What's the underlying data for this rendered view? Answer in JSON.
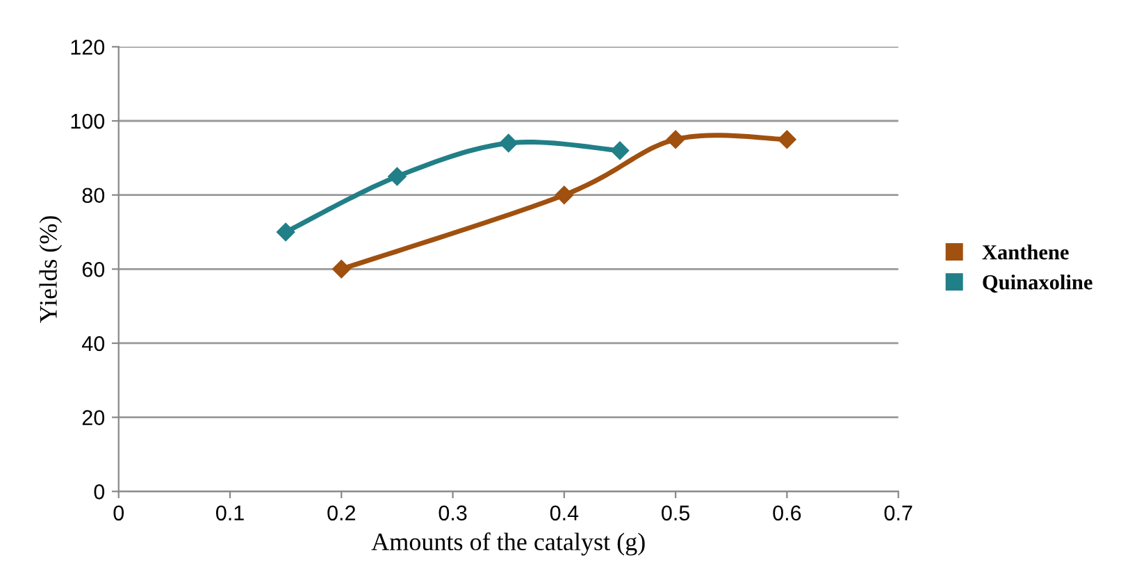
{
  "chart_data": {
    "type": "line",
    "xlabel": "Amounts of the catalyst (g)",
    "ylabel": "Yields (%)",
    "xlim": [
      0,
      0.7
    ],
    "xticks": [
      0,
      0.1,
      0.2,
      0.3,
      0.4,
      0.5,
      0.6,
      0.7
    ],
    "ylim": [
      0,
      120
    ],
    "yticks": [
      0,
      20,
      40,
      60,
      80,
      100,
      120
    ],
    "series": [
      {
        "name": "Xanthene",
        "color": "#a0500f",
        "x": [
          0.2,
          0.4,
          0.5,
          0.6
        ],
        "values": [
          60,
          80,
          95,
          95
        ]
      },
      {
        "name": "Quinaxoline",
        "color": "#217f88",
        "x": [
          0.15,
          0.25,
          0.35,
          0.45
        ],
        "values": [
          70,
          85,
          94,
          92
        ]
      }
    ],
    "grid": "y",
    "legend": "right",
    "marker": "diamond",
    "line_style": "solid"
  }
}
